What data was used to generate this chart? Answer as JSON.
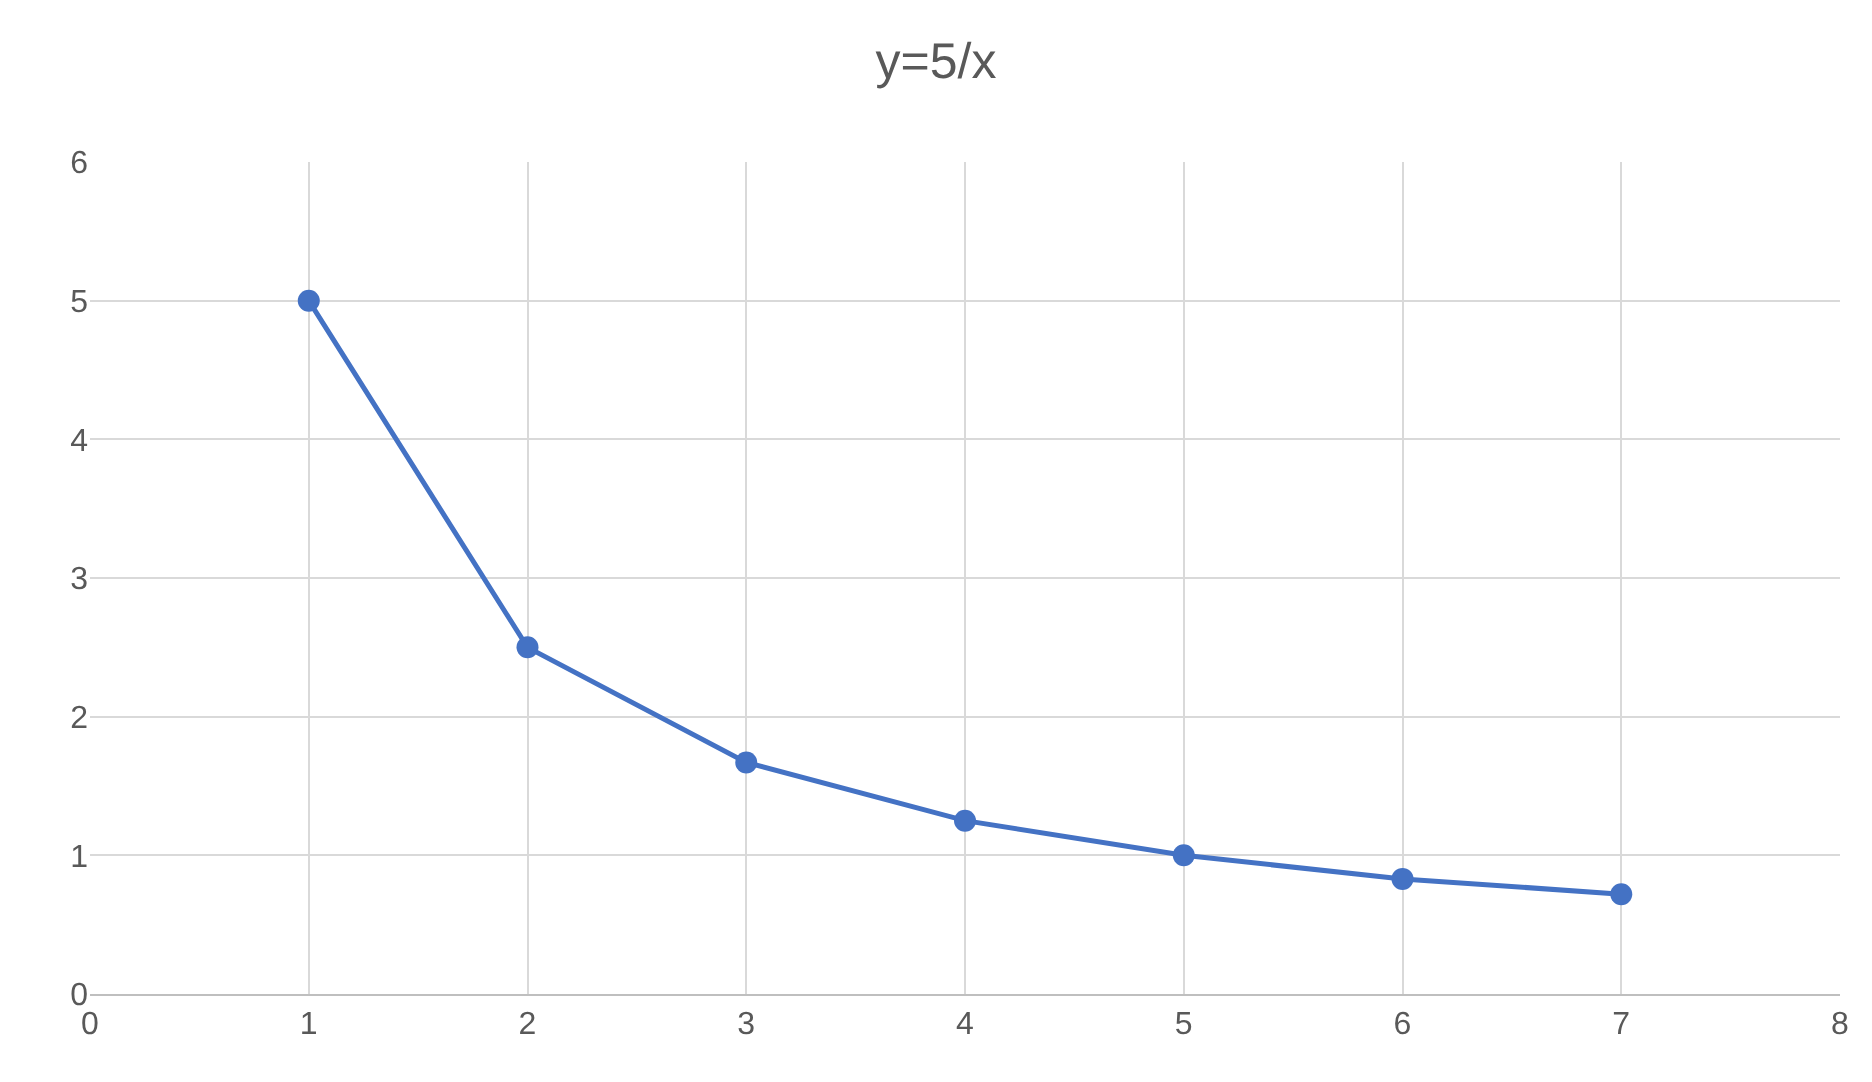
{
  "chart_data": {
    "type": "line",
    "title": "y=5/x",
    "x": [
      1,
      2,
      3,
      4,
      5,
      6,
      7
    ],
    "series": [
      {
        "color": "#4472c4",
        "values": [
          5,
          2.5,
          1.67,
          1.25,
          1,
          0.83,
          0.72
        ]
      }
    ],
    "xlim": [
      0,
      8
    ],
    "xticks": [
      0,
      1,
      2,
      3,
      4,
      5,
      6,
      7,
      8
    ],
    "ylim": [
      0,
      6
    ],
    "yticks": [
      0,
      1,
      2,
      3,
      4,
      5,
      6
    ],
    "grid": true,
    "marker": "circle",
    "line_style": "solid",
    "legend": false
  }
}
